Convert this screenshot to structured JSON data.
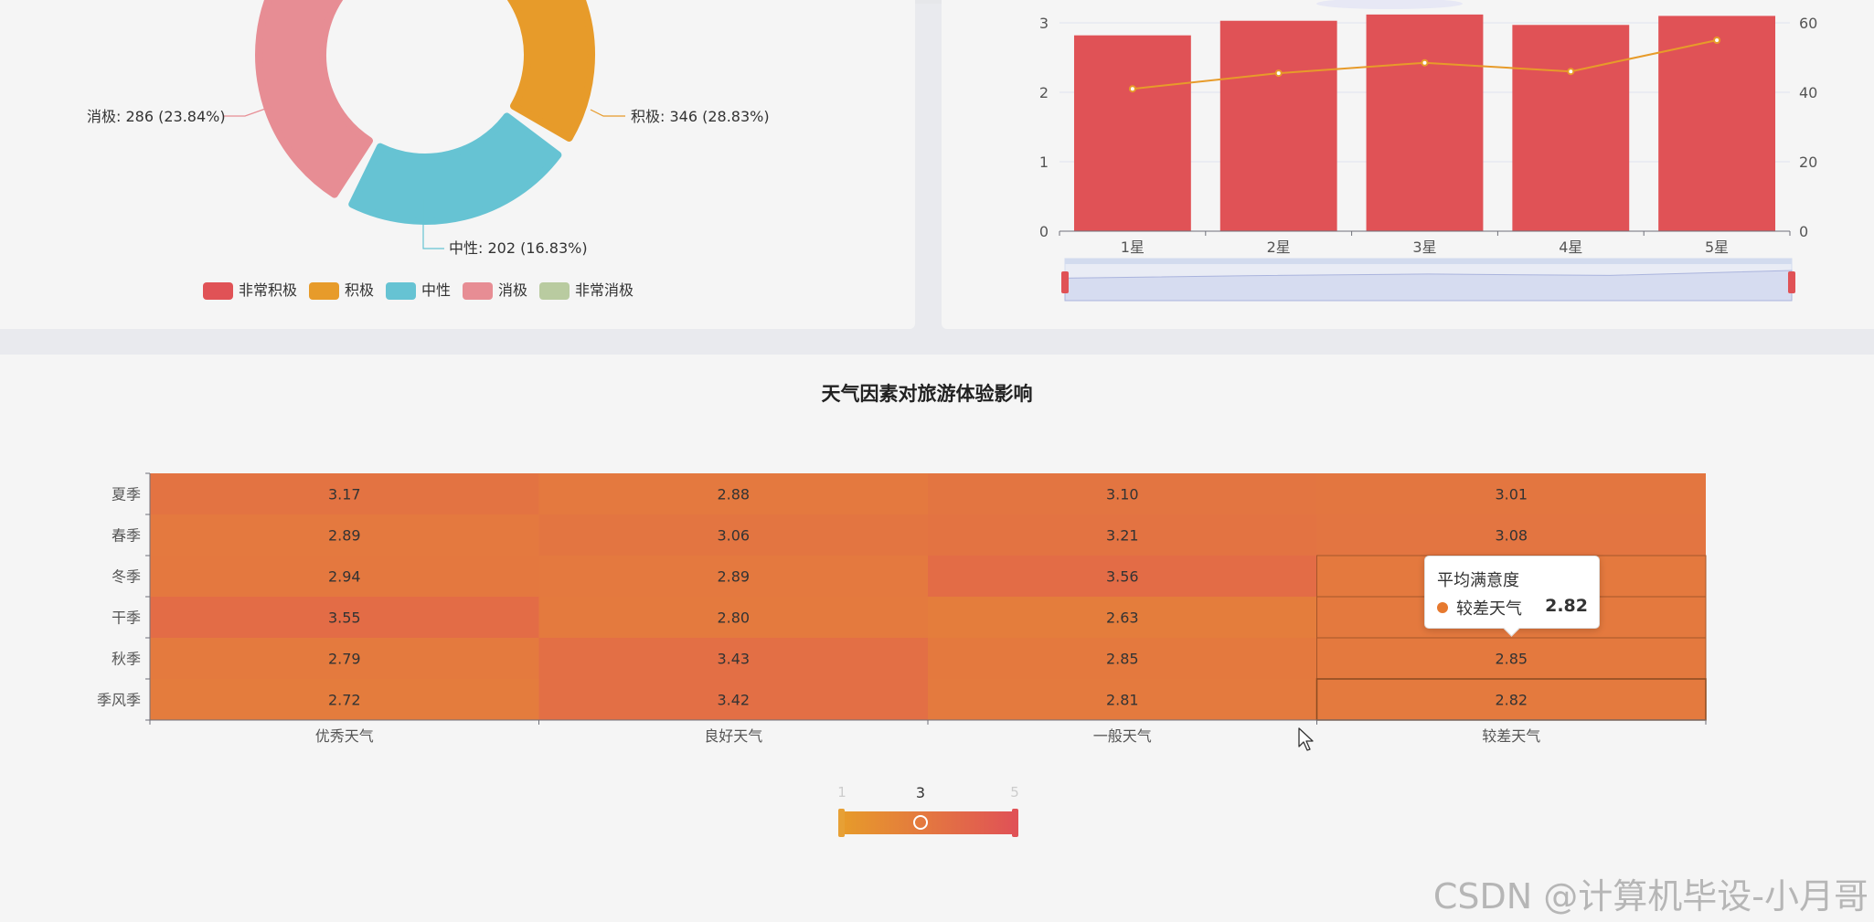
{
  "sentiment_chart": {
    "legend": [
      "非常积极",
      "积极",
      "中性",
      "消极",
      "非常消极"
    ],
    "colors": [
      "#e05256",
      "#e79b2a",
      "#66c3d3",
      "#e78d94",
      "#b9cba0"
    ],
    "labels": {
      "negative": "消极: 286 (23.84%)",
      "positive": "积极: 346 (28.83%)",
      "neutral": "中性: 202 (16.83%)"
    }
  },
  "rating_chart": {
    "bar_color": "#e05256",
    "line_color": "#e79b2a"
  },
  "heatmap": {
    "title": "天气因素对旅游体验影响",
    "tooltip": {
      "title": "平均满意度",
      "name": "较差天气",
      "value": "2.82",
      "dot_color": "#e6792f"
    },
    "visual_map": {
      "min_label": "1",
      "current_label": "3",
      "max_label": "5",
      "color_low": "#e79b2a",
      "color_high": "#e05256"
    }
  },
  "watermark": "CSDN @计算机毕设-小月哥",
  "chart_data": [
    {
      "type": "pie",
      "categories": [
        "非常积极",
        "积极",
        "中性",
        "消极",
        "非常消极"
      ],
      "values": [
        null,
        346,
        202,
        286,
        null
      ],
      "percents": [
        null,
        28.83,
        16.83,
        23.84,
        null
      ]
    },
    {
      "type": "bar",
      "categories": [
        "1星",
        "2星",
        "3星",
        "4星",
        "5星"
      ],
      "series": [
        {
          "name": "bar",
          "axis": "left",
          "values": [
            2.82,
            3.03,
            3.12,
            2.97,
            3.1
          ]
        },
        {
          "name": "line",
          "axis": "right",
          "values": [
            41,
            45.5,
            48.5,
            46,
            55
          ]
        }
      ],
      "y_left": {
        "min": 0,
        "max": 3,
        "ticks": [
          0,
          1,
          2,
          3
        ]
      },
      "y_right": {
        "min": 0,
        "max": 60,
        "ticks": [
          0,
          20,
          40,
          60
        ]
      }
    },
    {
      "type": "heatmap",
      "title": "天气因素对旅游体验影响",
      "x": [
        "优秀天气",
        "良好天气",
        "一般天气",
        "较差天气"
      ],
      "y": [
        "夏季",
        "春季",
        "冬季",
        "干季",
        "秋季",
        "季风季"
      ],
      "values": [
        [
          3.17,
          2.88,
          3.1,
          3.01
        ],
        [
          2.89,
          3.06,
          3.21,
          3.08
        ],
        [
          2.94,
          2.89,
          3.56,
          null
        ],
        [
          3.55,
          2.8,
          2.63,
          null
        ],
        [
          2.79,
          3.43,
          2.85,
          2.85
        ],
        [
          2.72,
          3.42,
          2.81,
          2.82
        ]
      ],
      "value_labels": [
        [
          "3.17",
          "2.88",
          "3.10",
          "3.01"
        ],
        [
          "2.89",
          "3.06",
          "3.21",
          "3.08"
        ],
        [
          "2.94",
          "2.89",
          "3.56",
          ""
        ],
        [
          "3.55",
          "2.80",
          "2.63",
          ""
        ],
        [
          "2.79",
          "3.43",
          "2.85",
          "2.85"
        ],
        [
          "2.72",
          "3.42",
          "2.81",
          "2.82"
        ]
      ],
      "visual_map_range": [
        1,
        5
      ]
    }
  ]
}
